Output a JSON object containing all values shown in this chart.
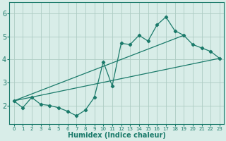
{
  "xlabel": "Humidex (Indice chaleur)",
  "ylabel": "",
  "xlim": [
    -0.5,
    23.5
  ],
  "ylim": [
    1.2,
    6.5
  ],
  "xticks": [
    0,
    1,
    2,
    3,
    4,
    5,
    6,
    7,
    8,
    9,
    10,
    11,
    12,
    13,
    14,
    15,
    16,
    17,
    18,
    19,
    20,
    21,
    22,
    23
  ],
  "yticks": [
    2,
    3,
    4,
    5,
    6
  ],
  "bg_color": "#d8ede8",
  "grid_color": "#aeccc4",
  "line_color": "#1a7a6a",
  "line1_x": [
    0,
    1,
    2,
    3,
    4,
    5,
    6,
    7,
    8,
    9,
    10,
    11,
    12,
    13,
    14,
    15,
    16,
    17,
    18,
    19,
    20,
    21,
    22,
    23
  ],
  "line1_y": [
    2.2,
    1.9,
    2.35,
    2.05,
    2.0,
    1.9,
    1.75,
    1.55,
    1.8,
    2.35,
    3.9,
    2.85,
    4.7,
    4.65,
    5.05,
    4.8,
    5.5,
    5.85,
    5.25,
    5.05,
    4.65,
    4.5,
    4.35,
    4.05
  ],
  "line2_x": [
    0,
    23
  ],
  "line2_y": [
    2.2,
    4.05
  ],
  "line3_x": [
    0,
    19
  ],
  "line3_y": [
    2.2,
    5.05
  ]
}
